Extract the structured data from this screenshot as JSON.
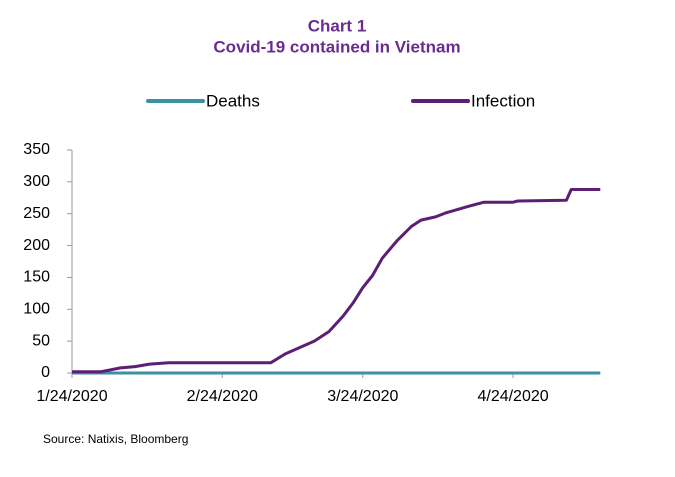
{
  "chart_data": {
    "type": "line",
    "title": "Chart 1",
    "subtitle": "Covid-19 contained in Vietnam",
    "source": "Source: Natixis, Bloomberg",
    "x": [
      "2020-01-24",
      "2020-01-30",
      "2020-02-03",
      "2020-02-06",
      "2020-02-09",
      "2020-02-13",
      "2020-03-05",
      "2020-03-08",
      "2020-03-11",
      "2020-03-14",
      "2020-03-17",
      "2020-03-20",
      "2020-03-22",
      "2020-03-24",
      "2020-03-26",
      "2020-03-28",
      "2020-03-31",
      "2020-04-03",
      "2020-04-05",
      "2020-04-08",
      "2020-04-10",
      "2020-04-15",
      "2020-04-18",
      "2020-04-24",
      "2020-04-25",
      "2020-05-05",
      "2020-05-06",
      "2020-05-12"
    ],
    "series": [
      {
        "name": "Deaths",
        "color": "#3a91a3",
        "values": [
          0,
          0,
          0,
          0,
          0,
          0,
          0,
          0,
          0,
          0,
          0,
          0,
          0,
          0,
          0,
          0,
          0,
          0,
          0,
          0,
          0,
          0,
          0,
          0,
          0,
          0,
          0,
          0
        ]
      },
      {
        "name": "Infection",
        "color": "#5c1f73",
        "values": [
          2,
          2,
          8,
          10,
          14,
          16,
          16,
          30,
          40,
          50,
          65,
          90,
          110,
          134,
          153,
          180,
          207,
          230,
          240,
          245,
          251,
          262,
          268,
          268,
          270,
          271,
          288,
          288
        ]
      }
    ],
    "xlim": [
      "2020-01-24",
      "2020-05-14"
    ],
    "xticks": [
      {
        "value": "2020-01-24",
        "label": "1/24/2020"
      },
      {
        "value": "2020-02-24",
        "label": "2/24/2020"
      },
      {
        "value": "2020-03-24",
        "label": "3/24/2020"
      },
      {
        "value": "2020-04-24",
        "label": "4/24/2020"
      }
    ],
    "ylim": [
      0,
      350
    ],
    "yticks": [
      0,
      50,
      100,
      150,
      200,
      250,
      300,
      350
    ],
    "legend": "top"
  }
}
